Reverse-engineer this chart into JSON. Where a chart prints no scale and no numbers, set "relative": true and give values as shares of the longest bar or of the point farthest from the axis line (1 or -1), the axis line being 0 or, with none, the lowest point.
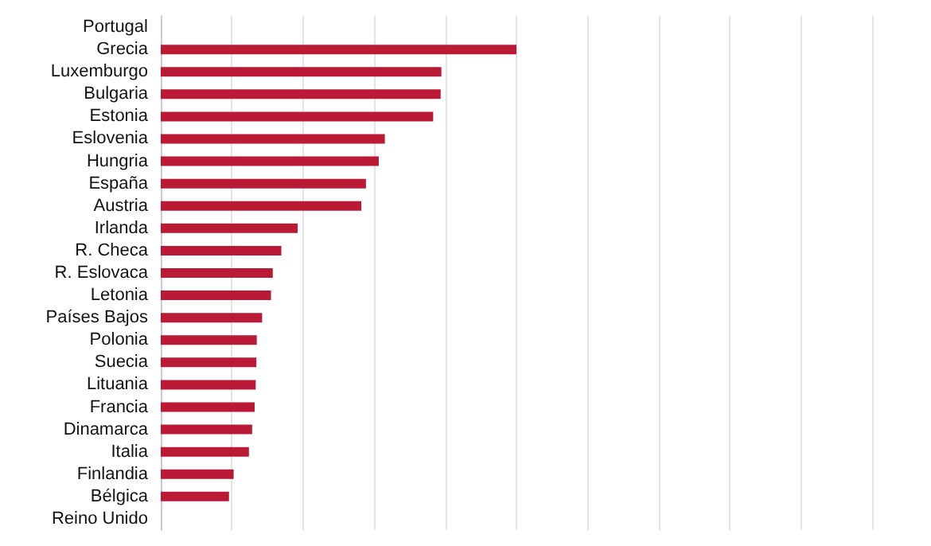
{
  "chart_data": {
    "type": "bar",
    "orientation": "horizontal",
    "relative": true,
    "grid": "x",
    "categories": [
      "Portugal",
      "Grecia",
      "Luxemburgo",
      "Bulgaria",
      "Estonia",
      "Eslovenia",
      "Hungria",
      "España",
      "Austria",
      "Irlanda",
      "R. Checa",
      "R. Eslovaca",
      "Letonia",
      "Países Bajos",
      "Polonia",
      "Suecia",
      "Lituania",
      "Francia",
      "Dinamarca",
      "Italia",
      "Finlandia",
      "Bélgica",
      "Reino Unido"
    ],
    "values": [
      null,
      1,
      0.789,
      0.787,
      0.766,
      0.63,
      0.613,
      0.577,
      0.564,
      0.385,
      0.339,
      0.315,
      0.31,
      0.285,
      0.27,
      0.269,
      0.267,
      0.264,
      0.257,
      0.248,
      0.205,
      0.192,
      null
    ],
    "color": "#bb1a36"
  }
}
